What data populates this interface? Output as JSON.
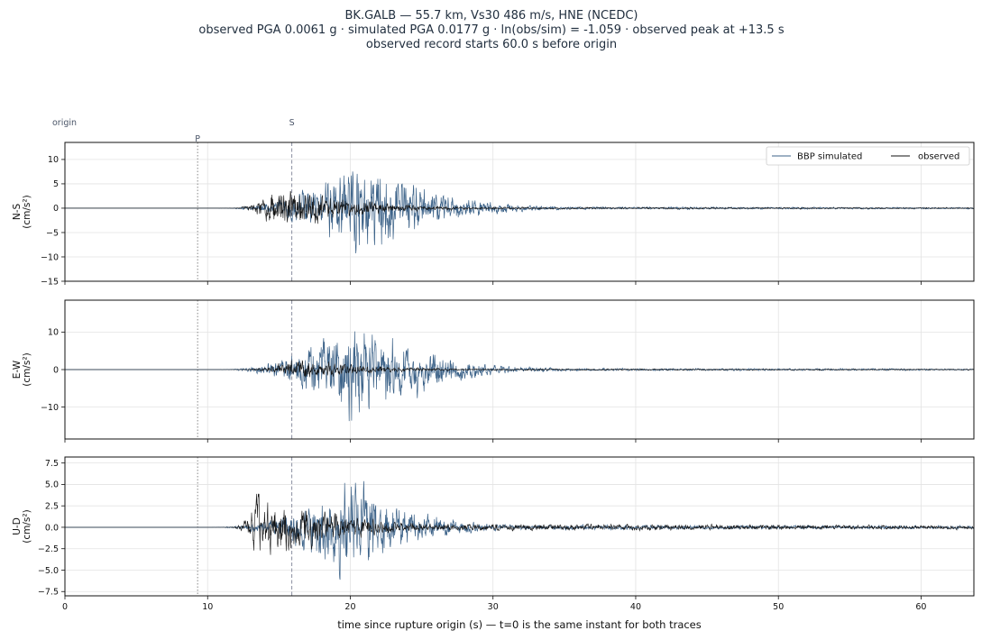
{
  "title_lines": [
    "BK.GALB  —  55.7 km, Vs30 486 m/s, HNE (NCEDC)",
    "observed PGA 0.0061 g   ·   simulated PGA 0.0177 g   ·   ln(obs/sim) = -1.059   ·   observed peak at +13.5 s",
    "observed record starts 60.0 s before origin"
  ],
  "markers": {
    "origin": {
      "label": "origin",
      "t": 0
    },
    "p": {
      "label": "P",
      "t": 9.3
    },
    "s": {
      "label": "S",
      "t": 15.9
    }
  },
  "legend": [
    {
      "key": "sim",
      "label": "BBP simulated"
    },
    {
      "key": "obs",
      "label": "observed"
    }
  ],
  "colors": {
    "simulated": "#3d6389",
    "observed": "#111111",
    "grid": "#e3e3e3",
    "p_line": "#888888",
    "s_line": "#8a8fa0",
    "title": "#1f2d3d"
  },
  "chart_data": {
    "type": "line",
    "xlabel": "time since rupture origin (s)   —   t=0 is the same instant for both traces",
    "xlim": [
      0,
      63.7
    ],
    "xticks": [
      0,
      10,
      20,
      30,
      40,
      50,
      60
    ],
    "panels": [
      {
        "key": "ns",
        "ylabel": [
          "N-S",
          "(cm/s²)"
        ],
        "ylim": [
          -15,
          13.5
        ],
        "yticks": [
          -15,
          -10,
          -5,
          0,
          5,
          10
        ],
        "ytick_labels": [
          "−15",
          "−10",
          "−5",
          "0",
          "5",
          "10"
        ],
        "legend": true,
        "simulated": {
          "start": 10.5,
          "peak_t": 20.5,
          "rise": 4.5,
          "decay": 5.5,
          "amp": 12.5,
          "tail": 0.35,
          "seed": 11
        },
        "observed": {
          "start": 11.5,
          "peak_t": 14.8,
          "rise": 1.5,
          "decay": 6.0,
          "amp": 5.5,
          "tail": 0.25,
          "seed": 23
        }
      },
      {
        "key": "ew",
        "ylabel": [
          "E-W",
          "(cm/s²)"
        ],
        "ylim": [
          -18.5,
          18.5
        ],
        "yticks": [
          -10,
          0,
          10
        ],
        "ytick_labels": [
          "−10",
          "0",
          "10"
        ],
        "legend": false,
        "simulated": {
          "start": 10.5,
          "peak_t": 20.0,
          "rise": 4.5,
          "decay": 5.5,
          "amp": 17.5,
          "tail": 0.45,
          "seed": 37
        },
        "observed": {
          "start": 11.8,
          "peak_t": 16.0,
          "rise": 2.0,
          "decay": 6.0,
          "amp": 3.5,
          "tail": 0.25,
          "seed": 41
        }
      },
      {
        "key": "ud",
        "ylabel": [
          "U-D",
          "(cm/s²)"
        ],
        "ylim": [
          -8,
          8.2
        ],
        "yticks": [
          -7.5,
          -5,
          -2.5,
          0,
          2.5,
          5,
          7.5
        ],
        "ytick_labels": [
          "−7.5",
          "−5.0",
          "−2.5",
          "0.0",
          "2.5",
          "5.0",
          "7.5"
        ],
        "legend": false,
        "simulated": {
          "start": 10.0,
          "peak_t": 19.5,
          "rise": 4.5,
          "decay": 5.0,
          "amp": 7.5,
          "tail": 0.35,
          "seed": 53
        },
        "observed": {
          "start": 11.5,
          "peak_t": 13.5,
          "rise": 1.3,
          "decay": 6.5,
          "amp": 4.5,
          "tail": 0.45,
          "seed": 67
        }
      }
    ]
  }
}
